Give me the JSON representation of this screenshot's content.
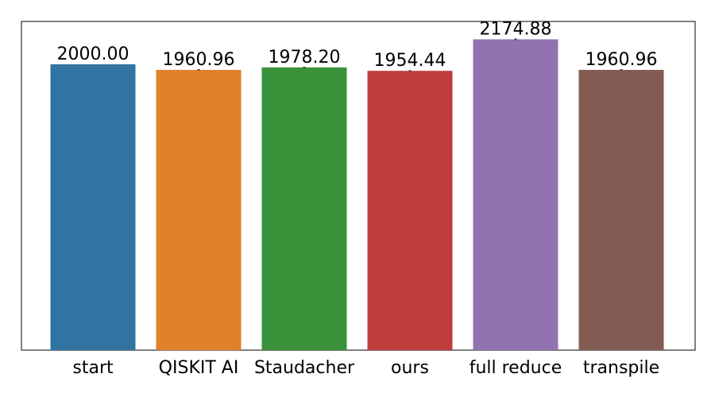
{
  "chart_data": {
    "type": "bar",
    "categories": [
      "start",
      "QISKIT AI",
      "Staudacher",
      "ours",
      "full reduce",
      "transpile"
    ],
    "values": [
      2000.0,
      1960.96,
      1978.2,
      1954.44,
      2174.88,
      1960.96
    ],
    "value_labels": [
      "2000.00",
      "1960.96",
      "1978.20",
      "1954.44",
      "2174.88",
      "1960.96"
    ],
    "error_bars": [
      0,
      10,
      10,
      10,
      12,
      10
    ],
    "colors": [
      "#3274a1",
      "#e1812c",
      "#3a923a",
      "#c03d3e",
      "#9372b2",
      "#845b53"
    ],
    "ylim": [
      0,
      2300
    ],
    "title": "",
    "xlabel": "",
    "ylabel": "",
    "y_axis_ticks_shown": false,
    "grid": false
  }
}
